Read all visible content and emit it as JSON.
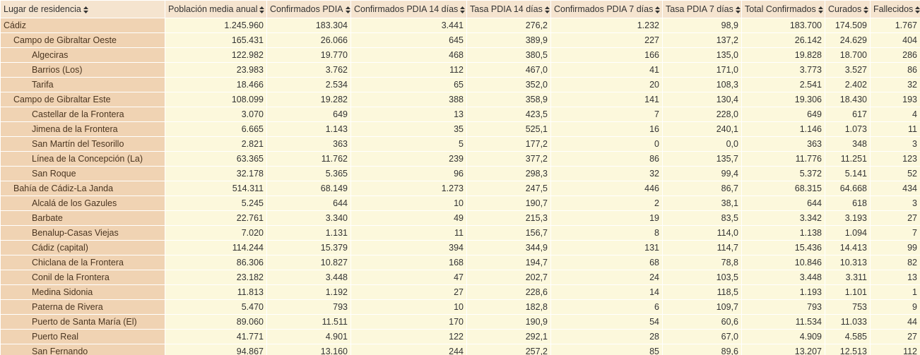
{
  "header": {
    "columns": [
      "Lugar de residencia",
      "Población media anual",
      "Confirmados PDIA",
      "Confirmados PDIA 14 días",
      "Tasa PDIA 14 días",
      "Confirmados PDIA 7 días",
      "Tasa PDIA 7 días",
      "Total Confirmados",
      "Curados",
      "Fallecidos"
    ]
  },
  "province": {
    "cells": [
      "Cádiz",
      "1.245.960",
      "183.304",
      "3.441",
      "276,2",
      "1.232",
      "98,9",
      "183.700",
      "174.509",
      "1.767"
    ],
    "districts": [
      {
        "cells": [
          "Campo de Gibraltar Oeste",
          "165.431",
          "26.066",
          "645",
          "389,9",
          "227",
          "137,2",
          "26.142",
          "24.629",
          "404"
        ],
        "municipalities": [
          {
            "cells": [
              "Algeciras",
              "122.982",
              "19.770",
              "468",
              "380,5",
              "166",
              "135,0",
              "19.828",
              "18.700",
              "286"
            ]
          },
          {
            "cells": [
              "Barrios (Los)",
              "23.983",
              "3.762",
              "112",
              "467,0",
              "41",
              "171,0",
              "3.773",
              "3.527",
              "86"
            ]
          },
          {
            "cells": [
              "Tarifa",
              "18.466",
              "2.534",
              "65",
              "352,0",
              "20",
              "108,3",
              "2.541",
              "2.402",
              "32"
            ]
          }
        ]
      },
      {
        "cells": [
          "Campo de Gibraltar Este",
          "108.099",
          "19.282",
          "388",
          "358,9",
          "141",
          "130,4",
          "19.306",
          "18.430",
          "193"
        ],
        "municipalities": [
          {
            "cells": [
              "Castellar de la Frontera",
              "3.070",
              "649",
              "13",
              "423,5",
              "7",
              "228,0",
              "649",
              "617",
              "4"
            ]
          },
          {
            "cells": [
              "Jimena de la Frontera",
              "6.665",
              "1.143",
              "35",
              "525,1",
              "16",
              "240,1",
              "1.146",
              "1.073",
              "11"
            ]
          },
          {
            "cells": [
              "San Martín del Tesorillo",
              "2.821",
              "363",
              "5",
              "177,2",
              "0",
              "0,0",
              "363",
              "348",
              "3"
            ]
          },
          {
            "cells": [
              "Línea de la Concepción (La)",
              "63.365",
              "11.762",
              "239",
              "377,2",
              "86",
              "135,7",
              "11.776",
              "11.251",
              "123"
            ]
          },
          {
            "cells": [
              "San Roque",
              "32.178",
              "5.365",
              "96",
              "298,3",
              "32",
              "99,4",
              "5.372",
              "5.141",
              "52"
            ]
          }
        ]
      },
      {
        "cells": [
          "Bahía de Cádiz-La Janda",
          "514.311",
          "68.149",
          "1.273",
          "247,5",
          "446",
          "86,7",
          "68.315",
          "64.668",
          "434"
        ],
        "municipalities": [
          {
            "cells": [
              "Alcalá de los Gazules",
              "5.245",
              "644",
              "10",
              "190,7",
              "2",
              "38,1",
              "644",
              "618",
              "3"
            ]
          },
          {
            "cells": [
              "Barbate",
              "22.761",
              "3.340",
              "49",
              "215,3",
              "19",
              "83,5",
              "3.342",
              "3.193",
              "27"
            ]
          },
          {
            "cells": [
              "Benalup-Casas Viejas",
              "7.020",
              "1.131",
              "11",
              "156,7",
              "8",
              "114,0",
              "1.138",
              "1.094",
              "7"
            ]
          },
          {
            "cells": [
              "Cádiz (capital)",
              "114.244",
              "15.379",
              "394",
              "344,9",
              "131",
              "114,7",
              "15.436",
              "14.413",
              "99"
            ]
          },
          {
            "cells": [
              "Chiclana de la Frontera",
              "86.306",
              "10.827",
              "168",
              "194,7",
              "68",
              "78,8",
              "10.846",
              "10.313",
              "82"
            ]
          },
          {
            "cells": [
              "Conil de la Frontera",
              "23.182",
              "3.448",
              "47",
              "202,7",
              "24",
              "103,5",
              "3.448",
              "3.311",
              "13"
            ]
          },
          {
            "cells": [
              "Medina Sidonia",
              "11.813",
              "1.192",
              "27",
              "228,6",
              "14",
              "118,5",
              "1.193",
              "1.101",
              "1"
            ]
          },
          {
            "cells": [
              "Paterna de Rivera",
              "5.470",
              "793",
              "10",
              "182,8",
              "6",
              "109,7",
              "793",
              "753",
              "9"
            ]
          },
          {
            "cells": [
              "Puerto de Santa María (El)",
              "89.060",
              "11.511",
              "170",
              "190,9",
              "54",
              "60,6",
              "11.534",
              "11.033",
              "44"
            ]
          },
          {
            "cells": [
              "Puerto Real",
              "41.771",
              "4.901",
              "122",
              "292,1",
              "28",
              "67,0",
              "4.909",
              "4.585",
              "27"
            ]
          },
          {
            "cells": [
              "San Fernando",
              "94.867",
              "13.160",
              "244",
              "257,2",
              "85",
              "89,6",
              "13.207",
              "12.513",
              "112"
            ]
          }
        ]
      }
    ]
  }
}
